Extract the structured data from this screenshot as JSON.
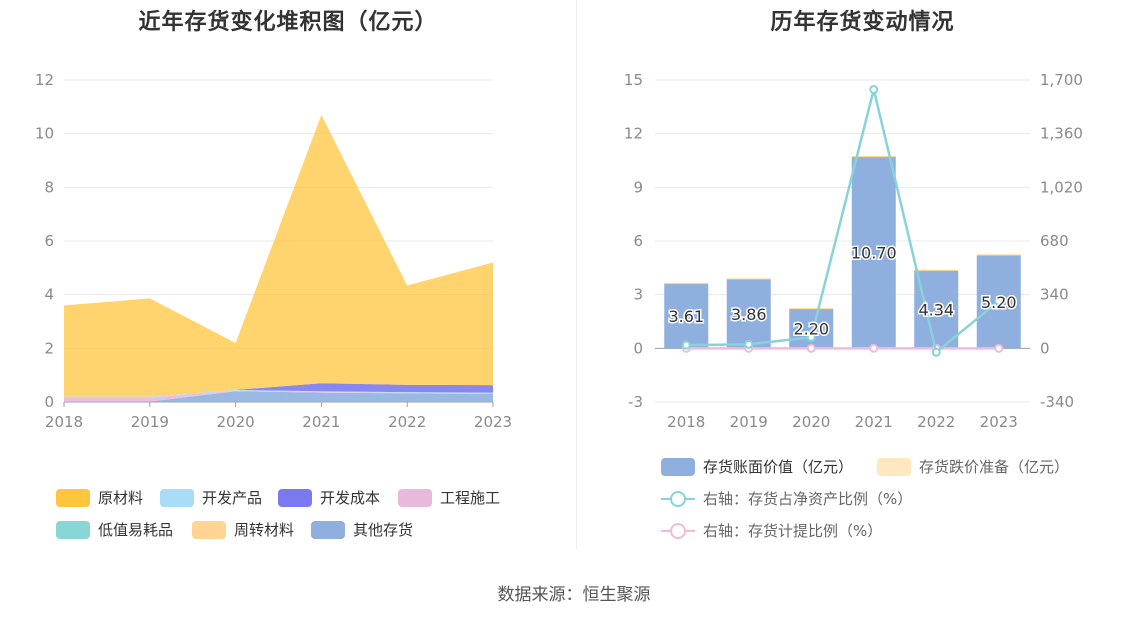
{
  "source_text": "数据来源：恒生聚源",
  "colors": {
    "raw_material": "#ffc53d",
    "dev_product": "#a8dcf7",
    "dev_cost": "#7b79f0",
    "engineering": "#e8b9dc",
    "low_value": "#88d6d6",
    "turnover": "#ffd591",
    "other": "#8fb0de",
    "bar_value": "#8fb0de",
    "bar_reserve": "#ffe7c0",
    "line_ratio_net": "#88d3d9",
    "line_ratio_provision": "#f0b9de",
    "grid": "#e6e8ee"
  },
  "chart_data": [
    {
      "type": "area",
      "title": "近年存货变化堆积图（亿元）",
      "x": [
        "2018",
        "2019",
        "2020",
        "2021",
        "2022",
        "2023"
      ],
      "ylim": [
        0,
        12
      ],
      "yticks": [
        0,
        2,
        4,
        6,
        8,
        10,
        12
      ],
      "grid": true,
      "legend_position": "bottom",
      "series": [
        {
          "name": "其他存货",
          "color_key": "other",
          "values": [
            0.02,
            0.02,
            0.4,
            0.35,
            0.32,
            0.3
          ]
        },
        {
          "name": "低值易耗品",
          "color_key": "low_value",
          "values": [
            0.0,
            0.0,
            0.0,
            0.0,
            0.0,
            0.0
          ]
        },
        {
          "name": "工程施工",
          "color_key": "engineering",
          "values": [
            0.15,
            0.15,
            0.02,
            0.02,
            0.02,
            0.02
          ]
        },
        {
          "name": "开发产品",
          "color_key": "dev_product",
          "values": [
            0.03,
            0.03,
            0.03,
            0.03,
            0.03,
            0.03
          ]
        },
        {
          "name": "开发成本",
          "color_key": "dev_cost",
          "values": [
            0.0,
            0.0,
            0.0,
            0.3,
            0.27,
            0.28
          ]
        },
        {
          "name": "周转材料",
          "color_key": "turnover",
          "values": [
            0.0,
            0.0,
            0.0,
            0.0,
            0.0,
            0.0
          ]
        },
        {
          "name": "原材料",
          "color_key": "raw_material",
          "values": [
            3.4,
            3.66,
            1.75,
            10.0,
            3.7,
            4.57
          ]
        }
      ],
      "legend": [
        "原材料",
        "开发产品",
        "开发成本",
        "工程施工",
        "低值易耗品",
        "周转材料",
        "其他存货"
      ]
    },
    {
      "type": "bar",
      "title": "历年存货变动情况",
      "categories": [
        "2018",
        "2019",
        "2020",
        "2021",
        "2022",
        "2023"
      ],
      "ylim": [
        -3,
        15
      ],
      "yticks": [
        -3,
        0,
        3,
        6,
        9,
        12,
        15
      ],
      "y2lim": [
        -340,
        1700
      ],
      "y2ticks": [
        -340,
        0,
        340,
        680,
        "1,020",
        "1,360",
        "1,700"
      ],
      "grid": true,
      "legend_position": "bottom",
      "series": [
        {
          "name": "存货账面价值（亿元）",
          "type": "bar",
          "values": [
            3.61,
            3.86,
            2.2,
            10.7,
            4.34,
            5.2
          ],
          "labels": [
            "3.61",
            "3.86",
            "2.20",
            "10.70",
            "4.34",
            "5.20"
          ]
        },
        {
          "name": "存货跌价准备（亿元）",
          "type": "bar",
          "values": [
            0.05,
            0.05,
            0.05,
            0.05,
            0.05,
            0.05
          ]
        },
        {
          "name": "右轴：存货占净资产比例（%）",
          "type": "line",
          "axis": "right",
          "values": [
            20,
            25,
            70,
            1640,
            -25,
            300
          ]
        },
        {
          "name": "右轴：存货计提比例（%）",
          "type": "line",
          "axis": "right",
          "values": [
            0,
            0,
            0,
            0,
            0,
            0
          ]
        }
      ]
    }
  ]
}
